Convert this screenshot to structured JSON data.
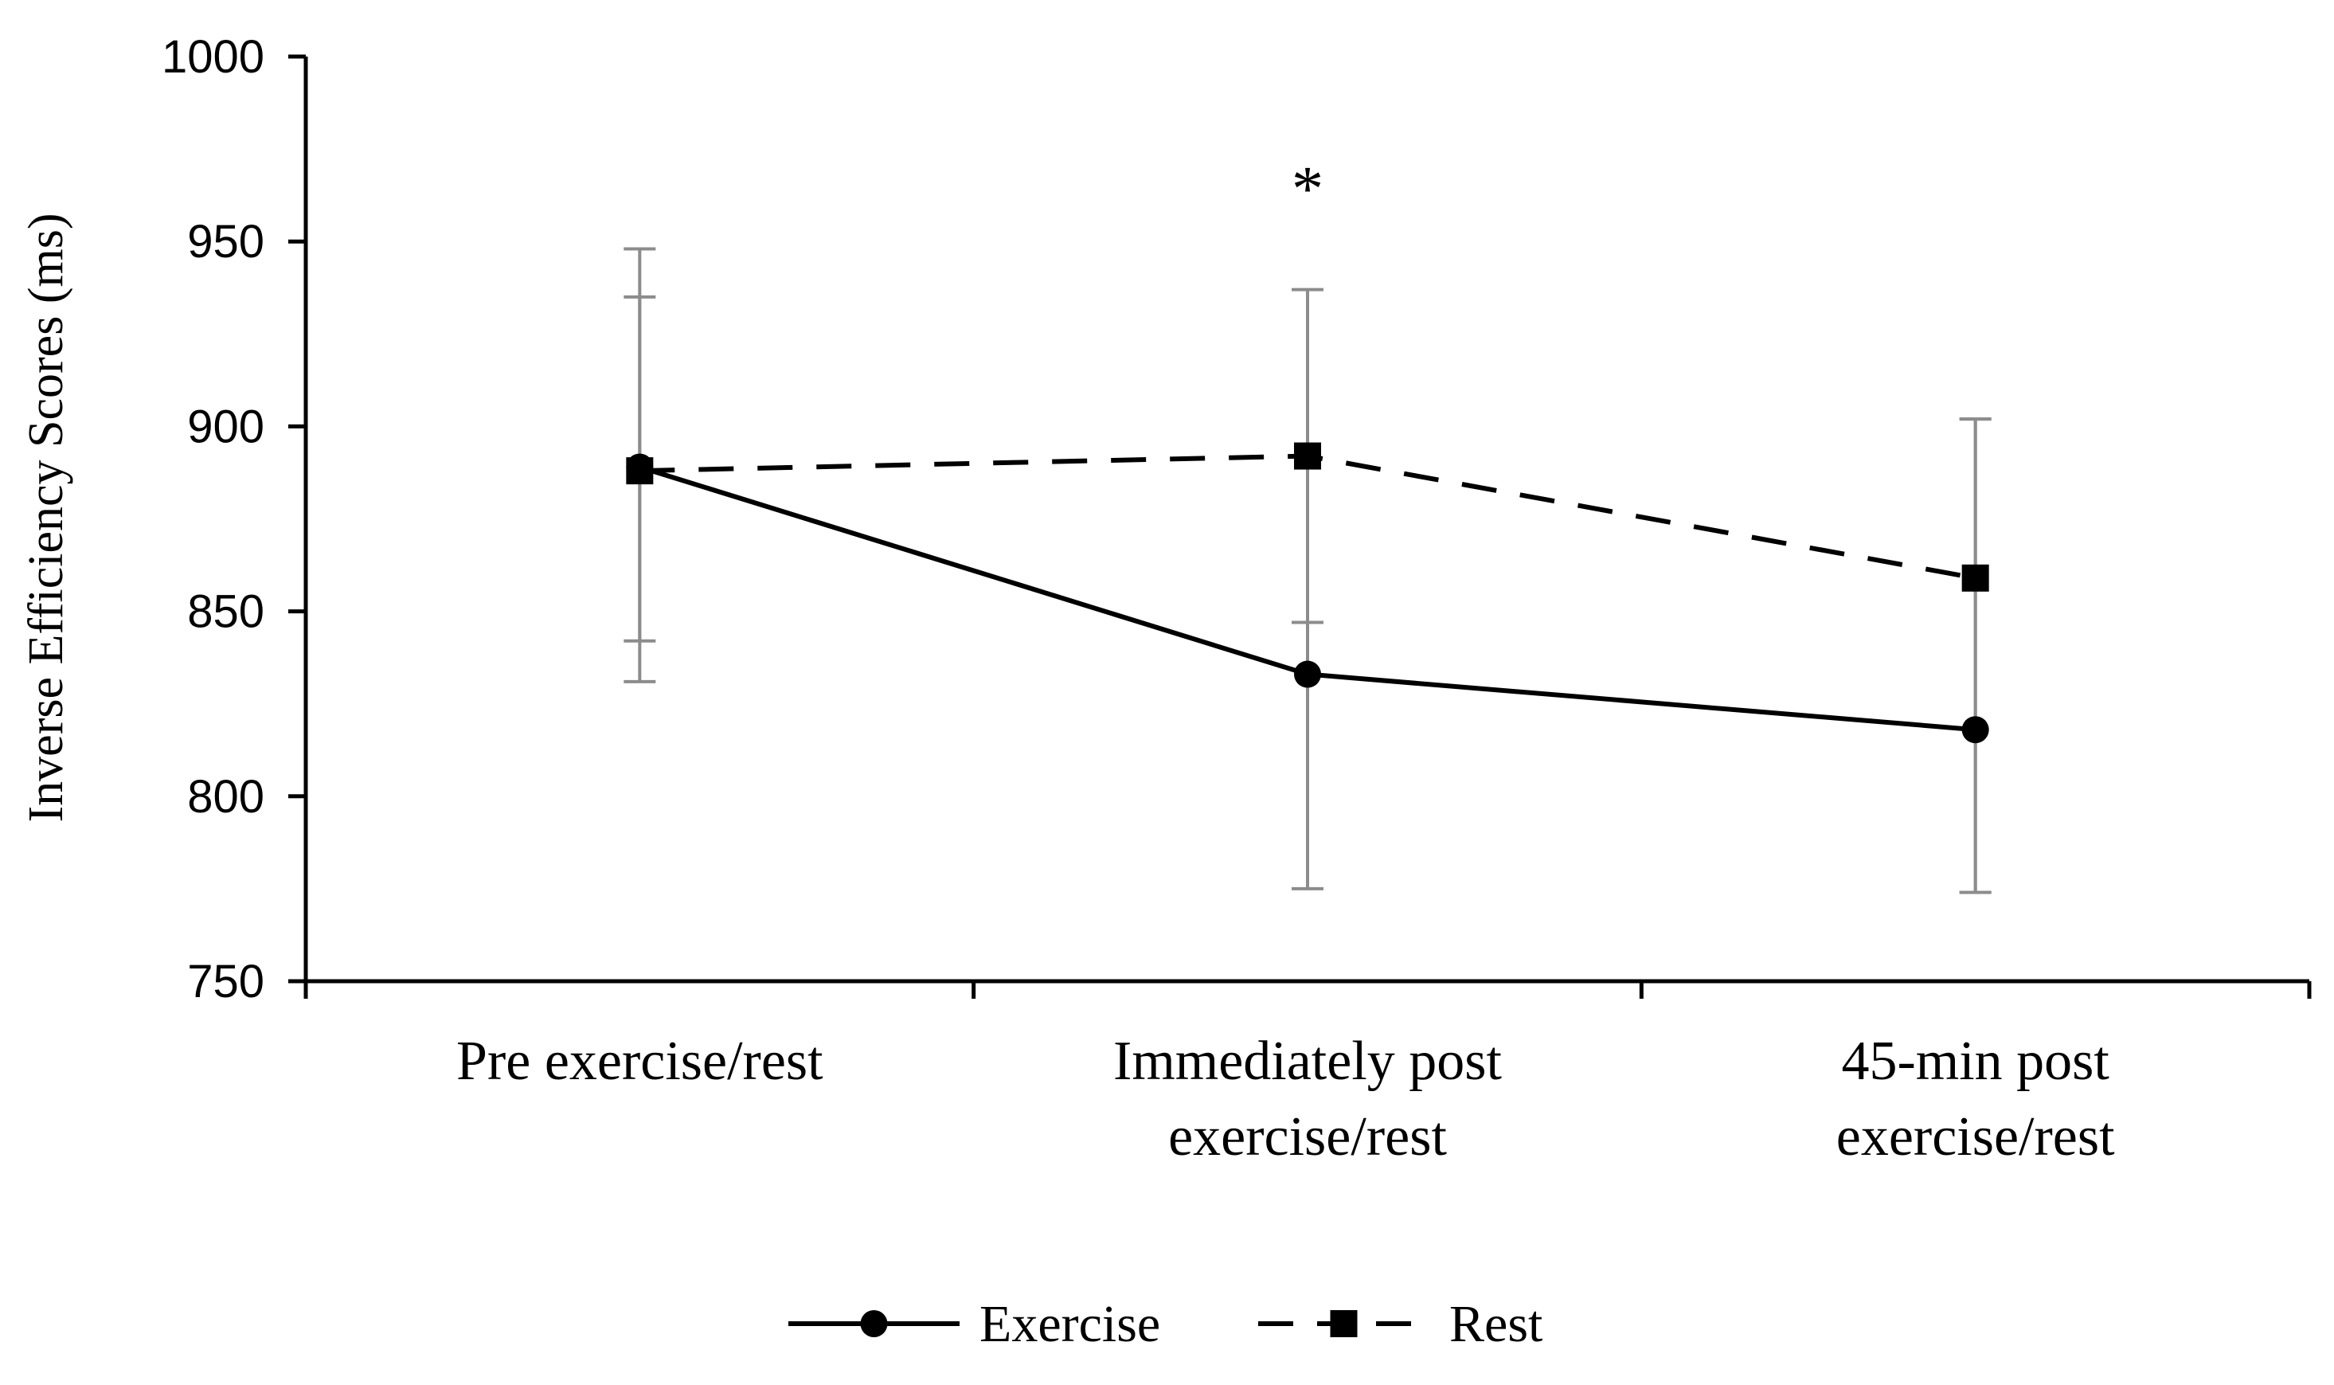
{
  "chart_data": {
    "type": "line",
    "title": "",
    "xlabel": "",
    "ylabel": "Inverse Efficiency Scores (ms)",
    "ylim": [
      750,
      1000
    ],
    "yticks": [
      750,
      800,
      850,
      900,
      950,
      1000
    ],
    "categories": [
      [
        "Pre exercise/rest"
      ],
      [
        "Immediately post",
        "exercise/rest"
      ],
      [
        "45-min post",
        "exercise/rest"
      ]
    ],
    "grid": false,
    "legend_position": "bottom",
    "series": [
      {
        "name": "Exercise",
        "style": "solid",
        "marker": "circle",
        "color": "#000000",
        "values": [
          889,
          833,
          818
        ],
        "error_low": [
          831,
          775,
          774
        ],
        "error_high": [
          948,
          847,
          902
        ]
      },
      {
        "name": "Rest",
        "style": "dashed",
        "marker": "square",
        "color": "#000000",
        "values": [
          888,
          892,
          859
        ],
        "error_low": [
          842,
          847,
          774
        ],
        "error_high": [
          935,
          937,
          902
        ]
      }
    ],
    "annotations": [
      {
        "text": "*",
        "category_index": 1,
        "y": 965
      }
    ],
    "error_bar_color": "#8c8c8c"
  }
}
